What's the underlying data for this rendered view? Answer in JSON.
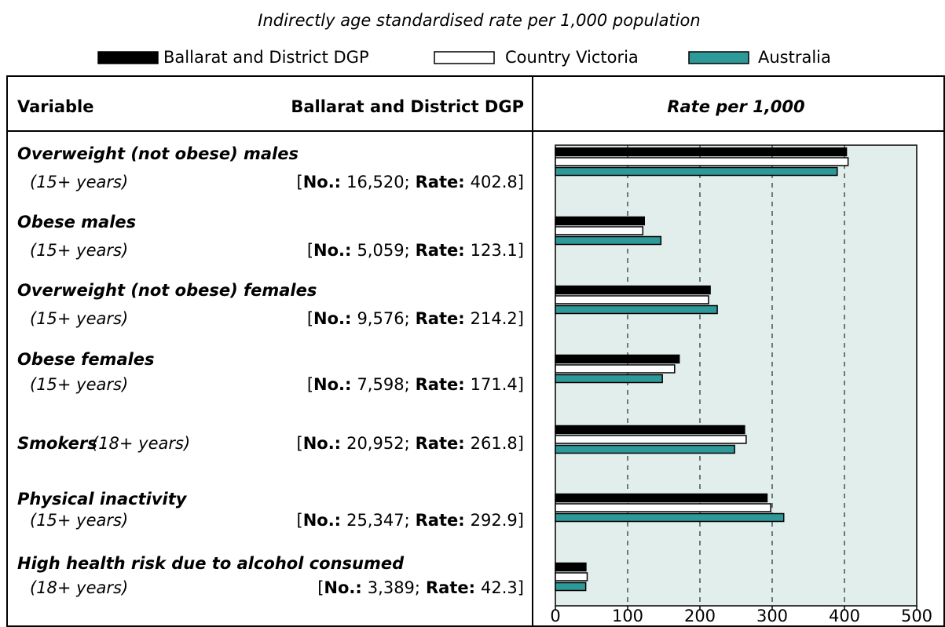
{
  "chart_data": {
    "type": "bar",
    "orientation": "horizontal",
    "subtitle": "Indirectly age standardised rate per 1,000 population",
    "headers": [
      "Variable",
      "Ballarat and District DGP",
      "Rate per 1,000"
    ],
    "categories": [
      "Overweight (not obese) males",
      "Obese males",
      "Overweight (not obese) females",
      "Obese females",
      "Smokers",
      "Physical inactivity",
      "High health risk due to alcohol consumed"
    ],
    "ages": [
      "(15+ years)",
      "(15+ years)",
      "(15+ years)",
      "(15+ years)",
      "(18+ years)",
      "(15+ years)",
      "(18+ years)"
    ],
    "counts": [
      "16,520",
      "5,059",
      "9,576",
      "7,598",
      "20,952",
      "25,347",
      "3,389"
    ],
    "count_label": "No.:",
    "rate_label": "Rate:",
    "bracket_open": "[",
    "separator": ";",
    "bracket_close": "]",
    "series": [
      {
        "name": "Ballarat and District DGP",
        "color": "#000000",
        "values": [
          402.8,
          123.1,
          214.2,
          171.4,
          261.8,
          292.9,
          42.3
        ]
      },
      {
        "name": "Country Victoria",
        "color": "#ffffff",
        "values": [
          405,
          121,
          212,
          165,
          264,
          298,
          44
        ]
      },
      {
        "name": "Australia",
        "color": "#2e9999",
        "values": [
          390,
          146,
          224,
          148,
          248,
          316,
          42
        ]
      }
    ],
    "xlim": [
      0,
      500
    ],
    "xticks": [
      0,
      100,
      200,
      300,
      400,
      500
    ],
    "grid": true,
    "plot_background": "#e1eeeb"
  }
}
